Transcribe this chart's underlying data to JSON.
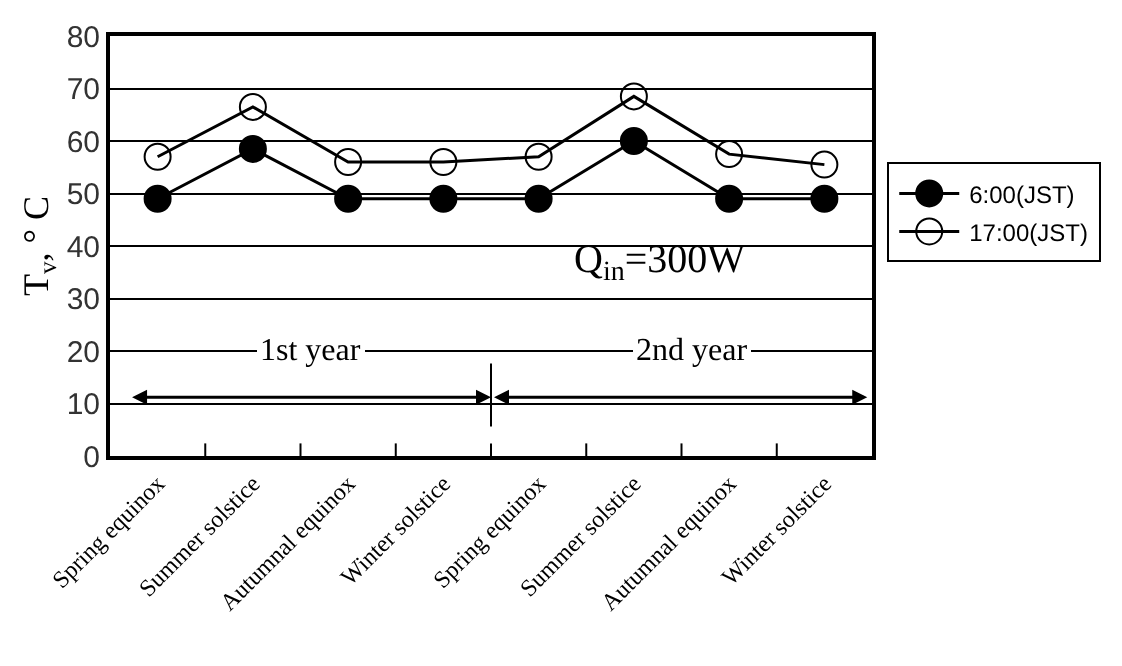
{
  "chart_data": {
    "type": "line",
    "ylabel": "T$_{v}$, ° C",
    "categories": [
      "Spring equinox",
      "Summer solstice",
      "Autumnal equinox",
      "Winter solstice",
      "Spring equinox",
      "Summer solstice",
      "Autumnal equinox",
      "Winter solstice"
    ],
    "series": [
      {
        "name": "6:00(JST)",
        "color": "#000000",
        "values": [
          49,
          58.5,
          49,
          49,
          49,
          60,
          49,
          49
        ]
      },
      {
        "name": "17:00(JST)",
        "color": "#000000",
        "values": [
          57,
          66.5,
          56,
          56,
          57,
          68.5,
          57.5,
          55.5
        ]
      }
    ],
    "ylim": [
      0,
      80
    ],
    "yticks": [
      0,
      10,
      20,
      30,
      40,
      50,
      60,
      70,
      80
    ],
    "grid": "y",
    "legend": "right",
    "marker": "circle",
    "line_style": "solid",
    "annotations": [
      "Q$_{in}$=300W",
      "1st year",
      "2nd year"
    ]
  }
}
